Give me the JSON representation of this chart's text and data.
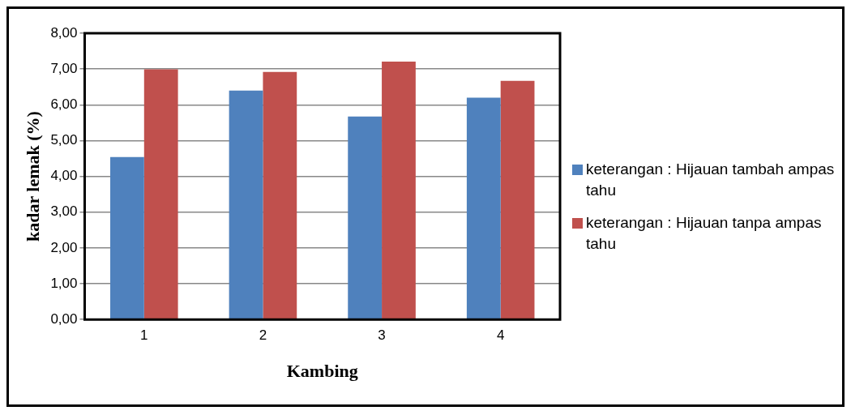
{
  "chart_data": {
    "type": "bar",
    "xlabel": "Kambing",
    "ylabel": "kadar lemak (%)",
    "categories": [
      "1",
      "2",
      "3",
      "4"
    ],
    "series": [
      {
        "name": "keterangan : Hijauan tambah ampas tahu",
        "color": "#4f81bd",
        "values": [
          4.54,
          6.4,
          5.67,
          6.2
        ]
      },
      {
        "name": "keterangan : Hijauan tanpa ampas tahu",
        "color": "#c0504d",
        "values": [
          6.99,
          6.92,
          7.21,
          6.67
        ]
      }
    ],
    "ylim": [
      0,
      8
    ],
    "yticks": [
      {
        "value": 0,
        "label": "0,00"
      },
      {
        "value": 1,
        "label": "1,00"
      },
      {
        "value": 2,
        "label": "2,00"
      },
      {
        "value": 3,
        "label": "3,00"
      },
      {
        "value": 4,
        "label": "4,00"
      },
      {
        "value": 5,
        "label": "5,00"
      },
      {
        "value": 6,
        "label": "6,00"
      },
      {
        "value": 7,
        "label": "7,00"
      },
      {
        "value": 8,
        "label": "8,00"
      }
    ],
    "grid": "y",
    "legend": "right"
  }
}
